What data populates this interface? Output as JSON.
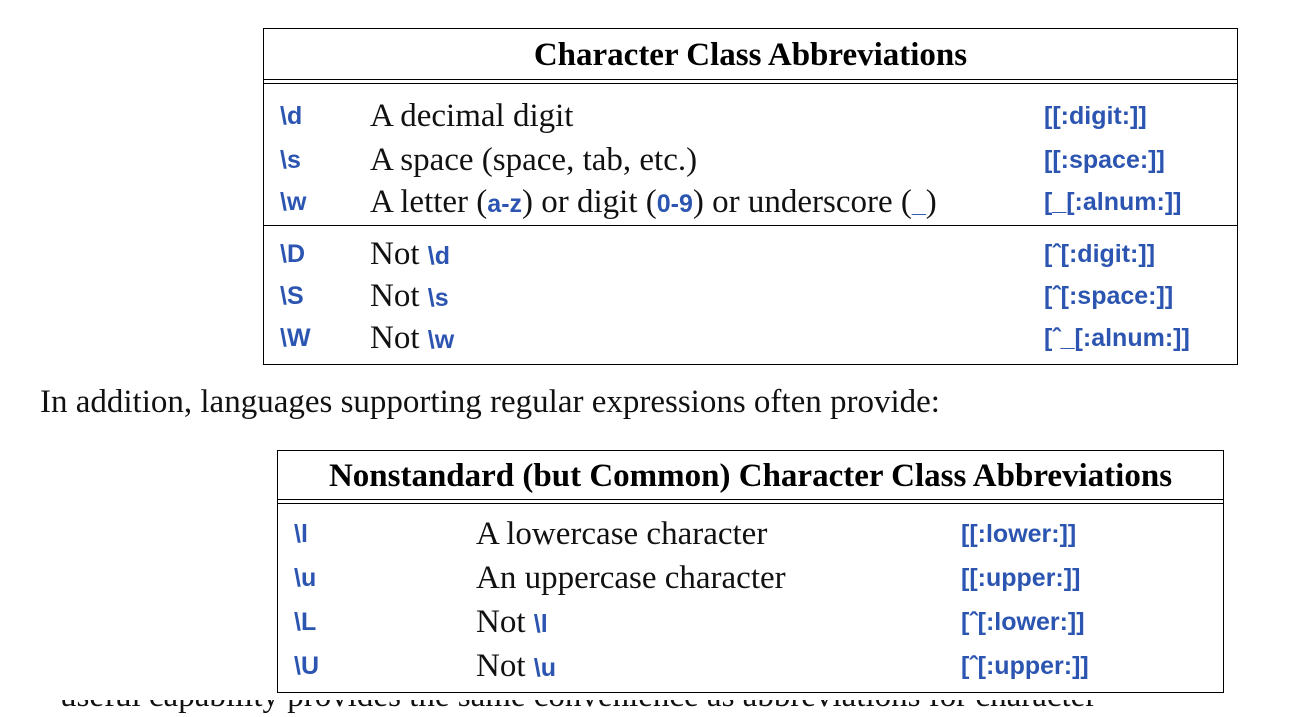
{
  "table1": {
    "title": "Character Class Abbreviations",
    "rows": [
      {
        "code": "\\d",
        "desc": [
          {
            "t": "A decimal digit"
          }
        ],
        "posix": "[[:digit:]]"
      },
      {
        "code": "\\s",
        "desc": [
          {
            "t": "A space (space, tab, etc.)"
          }
        ],
        "posix": "[[:space:]]"
      },
      {
        "code": "\\w",
        "desc": [
          {
            "t": "A letter ("
          },
          {
            "t": "a-z",
            "k": 1
          },
          {
            "t": ") or digit ("
          },
          {
            "t": "0-9",
            "k": 1
          },
          {
            "t": ") or underscore ("
          },
          {
            "t": "_",
            "k": 1
          },
          {
            "t": ")"
          }
        ],
        "posix": "[_[:alnum:]]"
      },
      {
        "code": "\\D",
        "desc": [
          {
            "t": "Not "
          },
          {
            "t": "\\d",
            "k": 1
          }
        ],
        "posix": "[ˆ[:digit:]]"
      },
      {
        "code": "\\S",
        "desc": [
          {
            "t": "Not "
          },
          {
            "t": "\\s",
            "k": 1
          }
        ],
        "posix": "[ˆ[:space:]]"
      },
      {
        "code": "\\W",
        "desc": [
          {
            "t": "Not "
          },
          {
            "t": "\\w",
            "k": 1
          }
        ],
        "posix": "[ˆ_[:alnum:]]"
      }
    ]
  },
  "paragraph": "In addition, languages supporting regular expressions often provide:",
  "table2": {
    "title": "Nonstandard (but Common) Character Class Abbreviations",
    "rows": [
      {
        "code": "\\l",
        "desc": [
          {
            "t": "A lowercase character"
          }
        ],
        "posix": "[[:lower:]]"
      },
      {
        "code": "\\u",
        "desc": [
          {
            "t": "An uppercase character"
          }
        ],
        "posix": "[[:upper:]]"
      },
      {
        "code": "\\L",
        "desc": [
          {
            "t": "Not "
          },
          {
            "t": "\\l",
            "k": 1
          }
        ],
        "posix": "[ˆ[:lower:]]"
      },
      {
        "code": "\\U",
        "desc": [
          {
            "t": "Not "
          },
          {
            "t": "\\u",
            "k": 1
          }
        ],
        "posix": "[ˆ[:upper:]]"
      }
    ]
  },
  "cutoff_text": "useful capability provides the same convenience as abbreviations for character",
  "colors": {
    "code_blue": "#2b55b0"
  }
}
